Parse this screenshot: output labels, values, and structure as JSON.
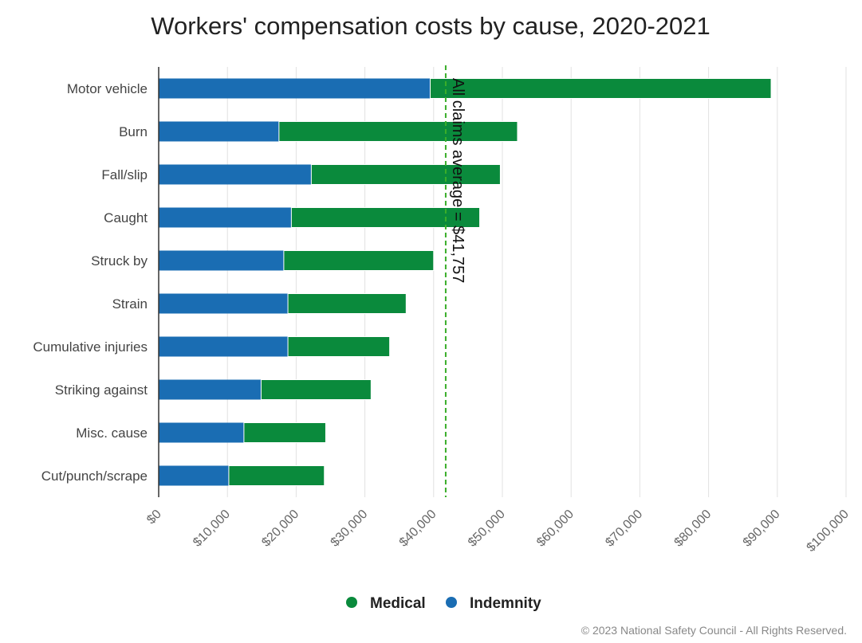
{
  "chart_data": {
    "type": "bar",
    "orientation": "horizontal",
    "stacked": true,
    "title": "Workers' compensation costs by cause, 2020-2021",
    "categories": [
      "Motor vehicle",
      "Burn",
      "Fall/slip",
      "Caught",
      "Struck by",
      "Strain",
      "Cumulative injuries",
      "Striking against",
      "Misc. cause",
      "Cut/punch/scrape"
    ],
    "series": [
      {
        "name": "Indemnity",
        "color": "#1a6db3",
        "values": [
          39500,
          17500,
          22200,
          19300,
          18200,
          18800,
          18800,
          14900,
          12400,
          10200
        ]
      },
      {
        "name": "Medical",
        "color": "#0a8a3c",
        "values": [
          49600,
          34700,
          27500,
          27400,
          21800,
          17200,
          14800,
          16000,
          11900,
          13900
        ]
      }
    ],
    "xlim": [
      0,
      100000
    ],
    "xticks": [
      0,
      10000,
      20000,
      30000,
      40000,
      50000,
      60000,
      70000,
      80000,
      90000,
      100000
    ],
    "xtick_labels": [
      "$0",
      "$10,000",
      "$20,000",
      "$30,000",
      "$40,000",
      "$50,000",
      "$60,000",
      "$70,000",
      "$80,000",
      "$90,000",
      "$100,000"
    ],
    "grid": true,
    "legend": {
      "position": "bottom",
      "items": [
        {
          "name": "Medical",
          "color": "#0a8a3c"
        },
        {
          "name": "Indemnity",
          "color": "#1a6db3"
        }
      ]
    },
    "reference_line": {
      "value": 41757,
      "label": "All claims average = $41,757",
      "color": "#3aae2a"
    },
    "credit": "© 2023 National Safety Council - All Rights Reserved."
  }
}
